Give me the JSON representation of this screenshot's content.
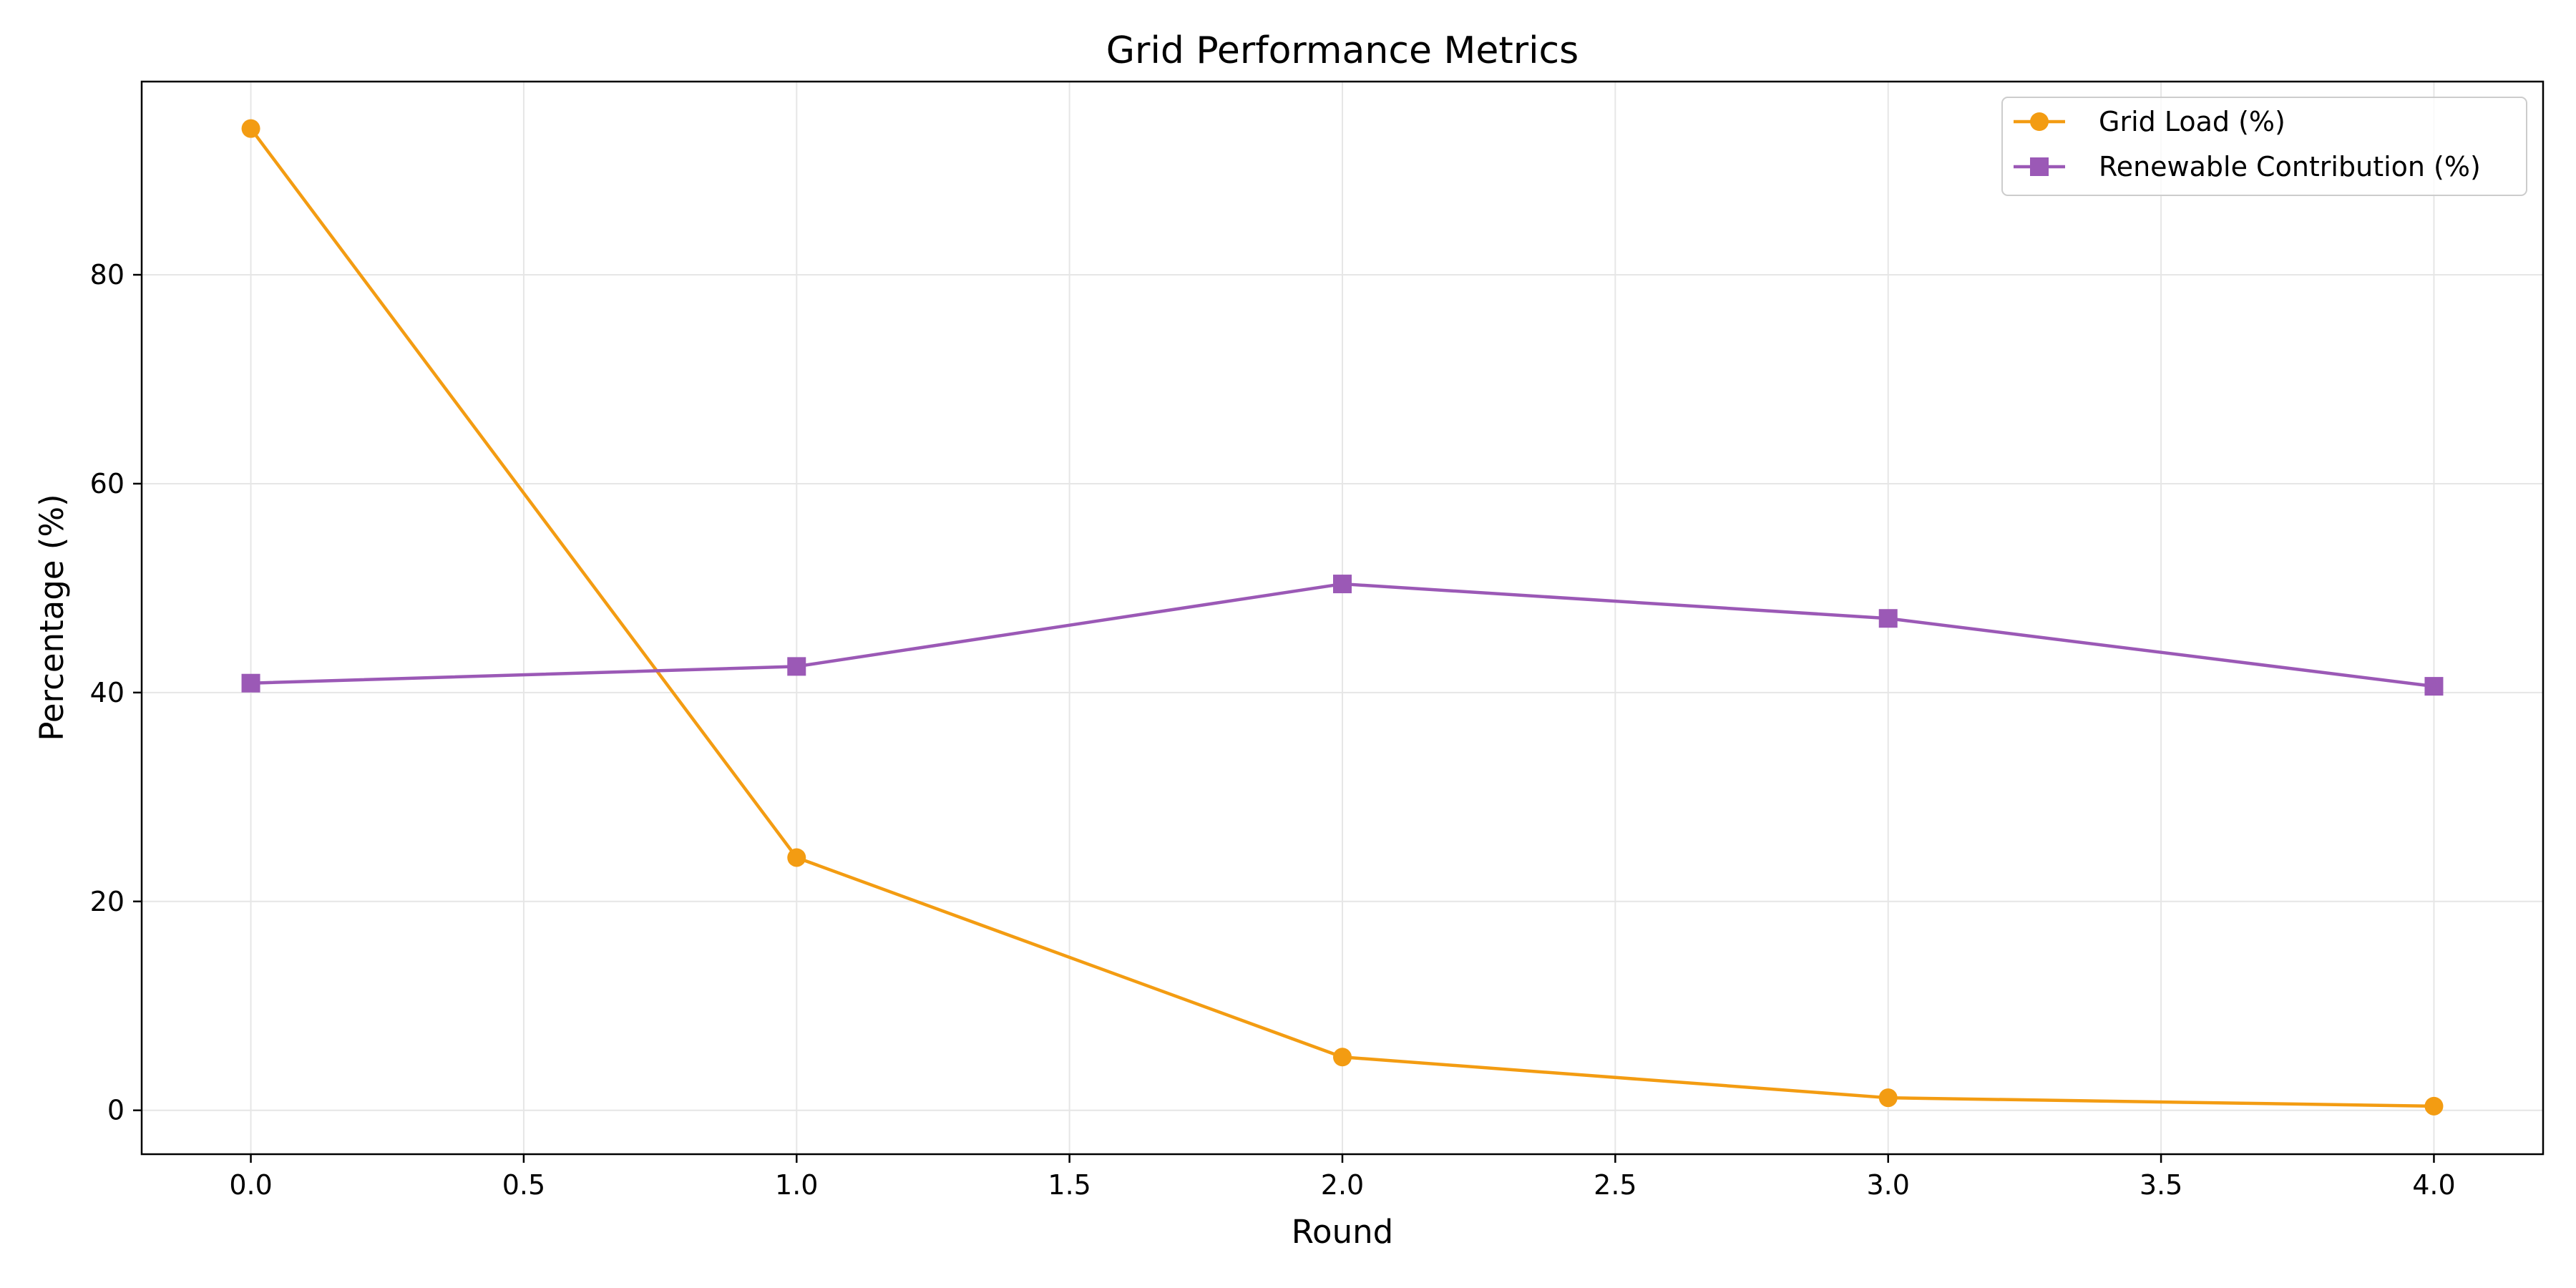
{
  "chart_data": {
    "type": "line",
    "title": "Grid Performance Metrics",
    "xlabel": "Round",
    "ylabel": "Percentage (%)",
    "xlim": [
      -0.2,
      4.2
    ],
    "ylim": [
      -4.2,
      98.5
    ],
    "xticks": [
      0.0,
      0.5,
      1.0,
      1.5,
      2.0,
      2.5,
      3.0,
      3.5,
      4.0
    ],
    "xtick_labels": [
      "0.0",
      "0.5",
      "1.0",
      "1.5",
      "2.0",
      "2.5",
      "3.0",
      "3.5",
      "4.0"
    ],
    "yticks": [
      0,
      20,
      40,
      60,
      80
    ],
    "ytick_labels": [
      "0",
      "20",
      "40",
      "60",
      "80"
    ],
    "grid": true,
    "legend_position": "top-right",
    "x": [
      0,
      1,
      2,
      3,
      4
    ],
    "series": [
      {
        "name": "Grid Load (%)",
        "values": [
          94.0,
          24.2,
          5.1,
          1.2,
          0.4
        ],
        "color": "#f39c12",
        "marker": "circle"
      },
      {
        "name": "Renewable Contribution (%)",
        "values": [
          40.9,
          42.5,
          50.4,
          47.1,
          40.6
        ],
        "color": "#9b59b6",
        "marker": "square"
      }
    ]
  }
}
